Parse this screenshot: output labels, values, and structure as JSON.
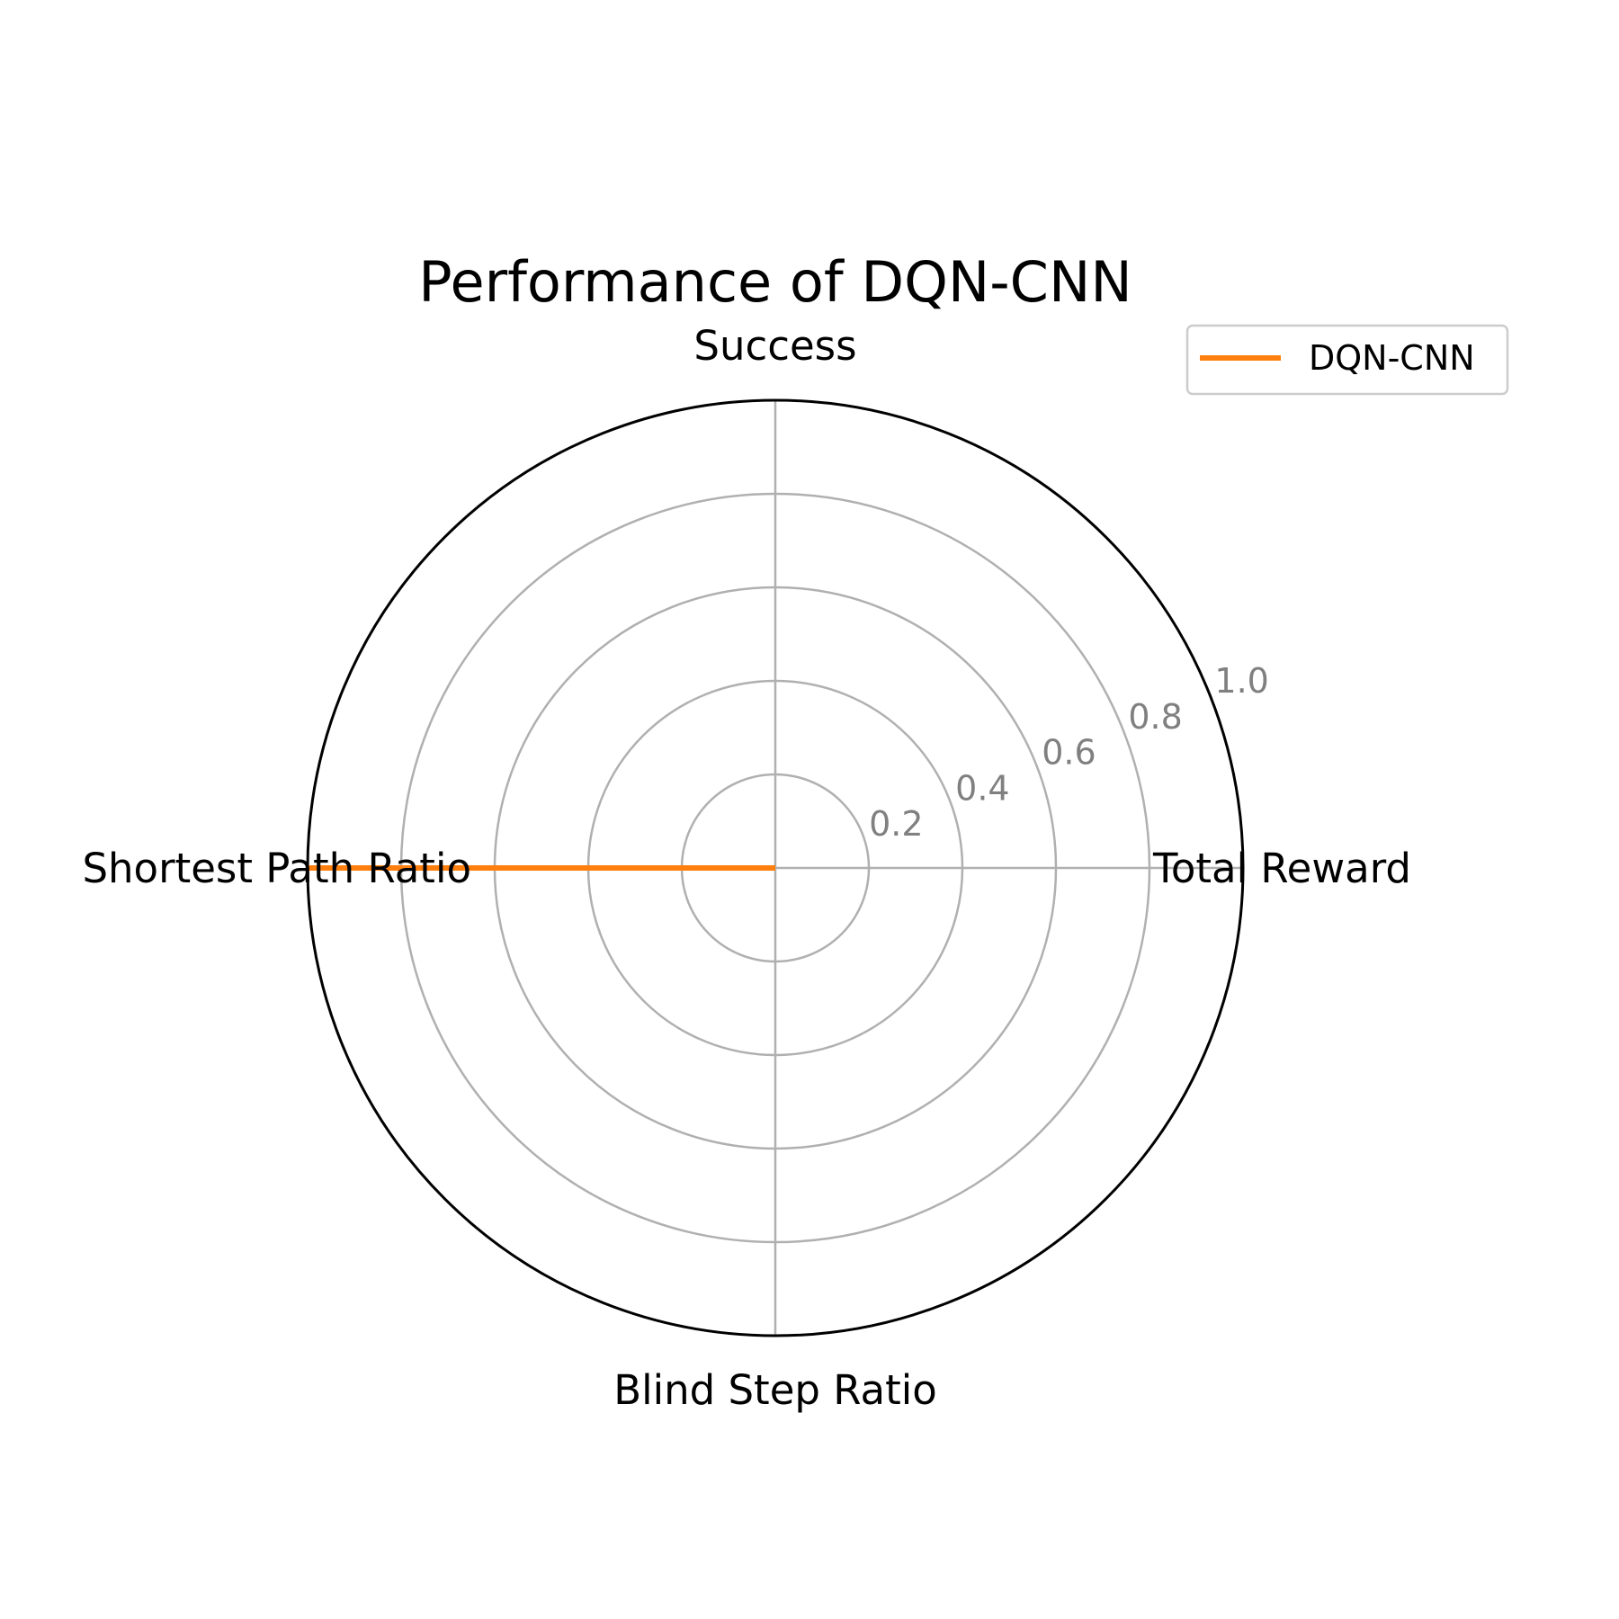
{
  "chart_data": {
    "type": "radar",
    "title": "Performance of DQN-CNN",
    "axes": [
      "Success",
      "Total Reward",
      "Blind Step Ratio",
      "Shortest Path Ratio"
    ],
    "rlim": [
      0,
      1.0
    ],
    "r_ticks": [
      0.2,
      0.4,
      0.6,
      0.8,
      1.0
    ],
    "r_tick_labels": [
      "0.2",
      "0.4",
      "0.6",
      "0.8",
      "1.0"
    ],
    "grid": true,
    "legend_position": "top-right",
    "series": [
      {
        "name": "DQN-CNN",
        "color": "#ff7f0e",
        "values": [
          0.0,
          0.0,
          0.0,
          1.0
        ]
      }
    ]
  },
  "colors": {
    "grid": "#b0b0b0",
    "outer_ring": "#000000",
    "tick_text": "#808080"
  }
}
